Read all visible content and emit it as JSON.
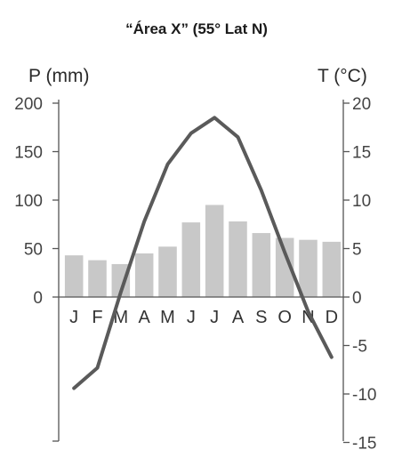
{
  "chart_data": {
    "type": "climograph",
    "title": "“Área X” (55° Lat N)",
    "left_axis_label": "P (mm)",
    "right_axis_label": "T (°C)",
    "categories": [
      "J",
      "F",
      "M",
      "A",
      "M",
      "J",
      "J",
      "A",
      "S",
      "O",
      "N",
      "D"
    ],
    "precipitation": {
      "type": "bar",
      "values": [
        43,
        38,
        34,
        45,
        52,
        77,
        95,
        78,
        66,
        61,
        59,
        57
      ]
    },
    "temperature": {
      "type": "line",
      "values": [
        -9.4,
        -7.3,
        0.5,
        7.8,
        13.7,
        16.9,
        18.5,
        16.5,
        11,
        4.6,
        -1.5,
        -6.2
      ]
    },
    "left_ticks": [
      200,
      150,
      100,
      50,
      0
    ],
    "right_ticks": [
      20,
      15,
      10,
      5,
      0,
      -5,
      -10,
      -15
    ],
    "left_ylim": [
      0,
      200
    ],
    "right_ylim": [
      -15,
      20
    ],
    "bar_color": "#c8c8c8",
    "line_color": "#5a5a5a",
    "axis_color": "#555555"
  }
}
